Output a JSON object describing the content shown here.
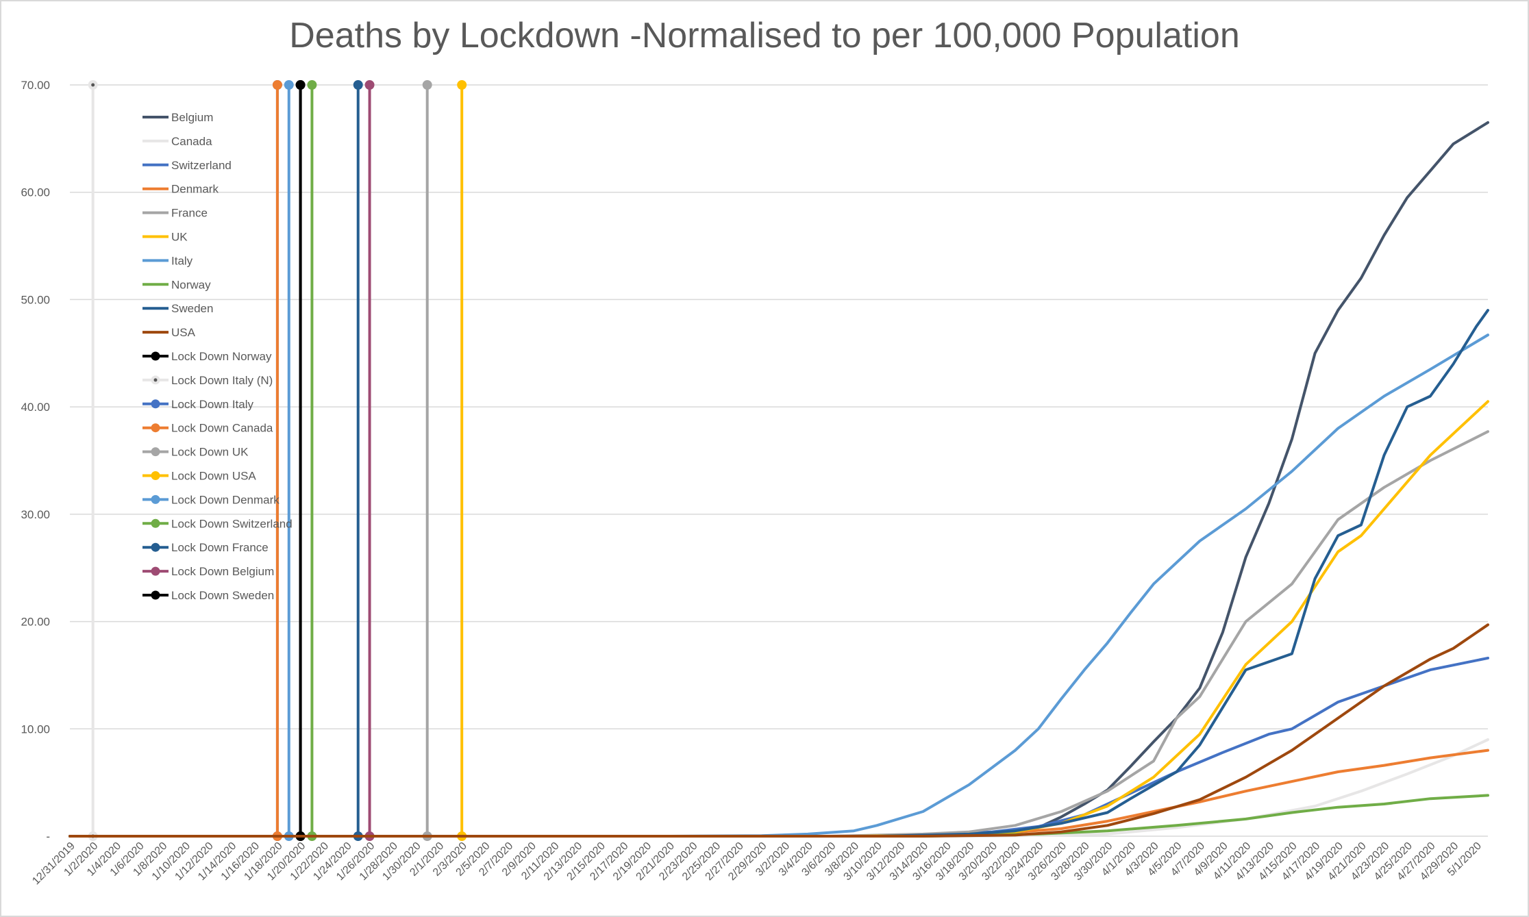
{
  "chart_data": {
    "type": "line",
    "title": "Deaths by Lockdown -Normalised to per 100,000 Population",
    "xlabel": "",
    "ylabel": "",
    "ylim": [
      0,
      70
    ],
    "y_ticks": [
      "-",
      "10.00",
      "20.00",
      "30.00",
      "40.00",
      "50.00",
      "60.00",
      "70.00"
    ],
    "x_start": "12/31/2019",
    "x_end": "5/2/2020",
    "x_tick_labels": [
      "12/31/2019",
      "1/2/2020",
      "1/4/2020",
      "1/6/2020",
      "1/8/2020",
      "1/10/2020",
      "1/12/2020",
      "1/14/2020",
      "1/16/2020",
      "1/18/2020",
      "1/20/2020",
      "1/22/2020",
      "1/24/2020",
      "1/26/2020",
      "1/28/2020",
      "1/30/2020",
      "2/1/2020",
      "2/3/2020",
      "2/5/2020",
      "2/7/2020",
      "2/9/2020",
      "2/11/2020",
      "2/13/2020",
      "2/15/2020",
      "2/17/2020",
      "2/19/2020",
      "2/21/2020",
      "2/23/2020",
      "2/25/2020",
      "2/27/2020",
      "2/29/2020",
      "3/2/2020",
      "3/4/2020",
      "3/6/2020",
      "3/8/2020",
      "3/10/2020",
      "3/12/2020",
      "3/14/2020",
      "3/16/2020",
      "3/18/2020",
      "3/20/2020",
      "3/22/2020",
      "3/24/2020",
      "3/26/2020",
      "3/28/2020",
      "3/30/2020",
      "4/1/2020",
      "4/3/2020",
      "4/5/2020",
      "4/7/2020",
      "4/9/2020",
      "4/11/2020",
      "4/13/2020",
      "4/15/2020",
      "4/17/2020",
      "4/19/2020",
      "4/21/2020",
      "4/23/2020",
      "4/25/2020",
      "4/27/2020",
      "4/29/2020",
      "5/1/2020"
    ],
    "grid": true,
    "legend_position": "top-left",
    "series": [
      {
        "name": "Belgium",
        "color": "#44546a",
        "kind": "line",
        "points": [
          [
            "12/31/2019",
            0
          ],
          [
            "3/10/2020",
            0
          ],
          [
            "3/18/2020",
            0.1
          ],
          [
            "3/22/2020",
            0.4
          ],
          [
            "3/24/2020",
            0.8
          ],
          [
            "3/26/2020",
            1.8
          ],
          [
            "3/28/2020",
            3.0
          ],
          [
            "3/30/2020",
            4.3
          ],
          [
            "4/1/2020",
            6.5
          ],
          [
            "4/3/2020",
            8.8
          ],
          [
            "4/5/2020",
            11.0
          ],
          [
            "4/7/2020",
            13.8
          ],
          [
            "4/9/2020",
            19.0
          ],
          [
            "4/11/2020",
            26.0
          ],
          [
            "4/13/2020",
            31.0
          ],
          [
            "4/15/2020",
            37.0
          ],
          [
            "4/17/2020",
            45.0
          ],
          [
            "4/19/2020",
            49.0
          ],
          [
            "4/21/2020",
            52.0
          ],
          [
            "4/23/2020",
            56.0
          ],
          [
            "4/25/2020",
            59.5
          ],
          [
            "4/27/2020",
            62.0
          ],
          [
            "4/29/2020",
            64.5
          ],
          [
            "5/2/2020",
            66.5
          ]
        ]
      },
      {
        "name": "Canada",
        "color": "#e7e6e6",
        "kind": "line",
        "points": [
          [
            "12/31/2019",
            0
          ],
          [
            "3/20/2020",
            0
          ],
          [
            "3/30/2020",
            0.2
          ],
          [
            "4/5/2020",
            0.8
          ],
          [
            "4/11/2020",
            1.6
          ],
          [
            "4/17/2020",
            2.8
          ],
          [
            "4/21/2020",
            4.2
          ],
          [
            "4/25/2020",
            5.8
          ],
          [
            "4/29/2020",
            7.5
          ],
          [
            "5/2/2020",
            9.0
          ]
        ]
      },
      {
        "name": "Switzerland",
        "color": "#4472c4",
        "kind": "line",
        "points": [
          [
            "12/31/2019",
            0
          ],
          [
            "3/6/2020",
            0
          ],
          [
            "3/14/2020",
            0.1
          ],
          [
            "3/20/2020",
            0.4
          ],
          [
            "3/24/2020",
            0.9
          ],
          [
            "3/28/2020",
            2.0
          ],
          [
            "4/1/2020",
            4.0
          ],
          [
            "4/5/2020",
            6.0
          ],
          [
            "4/9/2020",
            7.8
          ],
          [
            "4/13/2020",
            9.5
          ],
          [
            "4/15/2020",
            10.0
          ],
          [
            "4/19/2020",
            12.5
          ],
          [
            "4/23/2020",
            14.0
          ],
          [
            "4/27/2020",
            15.5
          ],
          [
            "5/2/2020",
            16.6
          ]
        ]
      },
      {
        "name": "Denmark",
        "color": "#ed7d31",
        "kind": "line",
        "points": [
          [
            "12/31/2019",
            0
          ],
          [
            "3/12/2020",
            0
          ],
          [
            "3/20/2020",
            0.2
          ],
          [
            "3/26/2020",
            0.7
          ],
          [
            "3/30/2020",
            1.4
          ],
          [
            "4/3/2020",
            2.3
          ],
          [
            "4/7/2020",
            3.2
          ],
          [
            "4/11/2020",
            4.2
          ],
          [
            "4/15/2020",
            5.1
          ],
          [
            "4/19/2020",
            6.0
          ],
          [
            "4/23/2020",
            6.6
          ],
          [
            "4/27/2020",
            7.3
          ],
          [
            "5/2/2020",
            8.0
          ]
        ]
      },
      {
        "name": "France",
        "color": "#a5a5a5",
        "kind": "line",
        "points": [
          [
            "12/31/2019",
            0
          ],
          [
            "3/6/2020",
            0
          ],
          [
            "3/14/2020",
            0.2
          ],
          [
            "3/18/2020",
            0.4
          ],
          [
            "3/22/2020",
            1.0
          ],
          [
            "3/26/2020",
            2.3
          ],
          [
            "3/30/2020",
            4.2
          ],
          [
            "4/3/2020",
            7.0
          ],
          [
            "4/5/2020",
            11.0
          ],
          [
            "4/7/2020",
            13.0
          ],
          [
            "4/9/2020",
            16.5
          ],
          [
            "4/11/2020",
            20.0
          ],
          [
            "4/15/2020",
            23.5
          ],
          [
            "4/17/2020",
            26.5
          ],
          [
            "4/19/2020",
            29.5
          ],
          [
            "4/23/2020",
            32.5
          ],
          [
            "4/27/2020",
            35.0
          ],
          [
            "5/2/2020",
            37.7
          ]
        ]
      },
      {
        "name": "UK",
        "color": "#ffc000",
        "kind": "line",
        "points": [
          [
            "12/31/2019",
            0
          ],
          [
            "3/8/2020",
            0
          ],
          [
            "3/16/2020",
            0.1
          ],
          [
            "3/22/2020",
            0.4
          ],
          [
            "3/26/2020",
            1.2
          ],
          [
            "3/30/2020",
            2.8
          ],
          [
            "4/3/2020",
            5.5
          ],
          [
            "4/7/2020",
            9.5
          ],
          [
            "4/11/2020",
            16.0
          ],
          [
            "4/15/2020",
            20.0
          ],
          [
            "4/19/2020",
            26.5
          ],
          [
            "4/21/2020",
            28.0
          ],
          [
            "4/25/2020",
            33.0
          ],
          [
            "4/27/2020",
            35.5
          ],
          [
            "4/29/2020",
            37.5
          ],
          [
            "5/2/2020",
            40.5
          ]
        ]
      },
      {
        "name": "Italy",
        "color": "#5b9bd5",
        "kind": "line",
        "points": [
          [
            "12/31/2019",
            0
          ],
          [
            "2/21/2020",
            0
          ],
          [
            "2/29/2020",
            0.05
          ],
          [
            "3/4/2020",
            0.2
          ],
          [
            "3/8/2020",
            0.5
          ],
          [
            "3/10/2020",
            1.0
          ],
          [
            "3/14/2020",
            2.3
          ],
          [
            "3/18/2020",
            4.8
          ],
          [
            "3/22/2020",
            8.0
          ],
          [
            "3/24/2020",
            10.0
          ],
          [
            "3/26/2020",
            12.8
          ],
          [
            "3/28/2020",
            15.5
          ],
          [
            "3/30/2020",
            18.0
          ],
          [
            "4/1/2020",
            20.8
          ],
          [
            "4/3/2020",
            23.5
          ],
          [
            "4/7/2020",
            27.5
          ],
          [
            "4/11/2020",
            30.5
          ],
          [
            "4/15/2020",
            34.0
          ],
          [
            "4/19/2020",
            38.0
          ],
          [
            "4/23/2020",
            41.0
          ],
          [
            "4/27/2020",
            43.5
          ],
          [
            "5/2/2020",
            46.7
          ]
        ]
      },
      {
        "name": "Norway",
        "color": "#70ad47",
        "kind": "line",
        "points": [
          [
            "12/31/2019",
            0
          ],
          [
            "3/14/2020",
            0
          ],
          [
            "3/24/2020",
            0.2
          ],
          [
            "3/30/2020",
            0.5
          ],
          [
            "4/5/2020",
            1.0
          ],
          [
            "4/11/2020",
            1.6
          ],
          [
            "4/15/2020",
            2.2
          ],
          [
            "4/19/2020",
            2.7
          ],
          [
            "4/23/2020",
            3.0
          ],
          [
            "4/27/2020",
            3.5
          ],
          [
            "5/2/2020",
            3.8
          ]
        ]
      },
      {
        "name": "Sweden",
        "color": "#255e91",
        "kind": "line",
        "points": [
          [
            "12/31/2019",
            0
          ],
          [
            "3/10/2020",
            0
          ],
          [
            "3/18/2020",
            0.2
          ],
          [
            "3/22/2020",
            0.5
          ],
          [
            "3/26/2020",
            1.2
          ],
          [
            "3/30/2020",
            2.2
          ],
          [
            "4/1/2020",
            3.5
          ],
          [
            "4/5/2020",
            6.0
          ],
          [
            "4/7/2020",
            8.5
          ],
          [
            "4/11/2020",
            15.5
          ],
          [
            "4/15/2020",
            17.0
          ],
          [
            "4/17/2020",
            24.0
          ],
          [
            "4/19/2020",
            28.0
          ],
          [
            "4/21/2020",
            29.0
          ],
          [
            "4/23/2020",
            35.5
          ],
          [
            "4/25/2020",
            40.0
          ],
          [
            "4/27/2020",
            41.0
          ],
          [
            "4/29/2020",
            44.0
          ],
          [
            "5/1/2020",
            47.5
          ],
          [
            "5/2/2020",
            49.0
          ]
        ]
      },
      {
        "name": "USA",
        "color": "#9e480e",
        "kind": "line",
        "points": [
          [
            "12/31/2019",
            0
          ],
          [
            "3/14/2020",
            0
          ],
          [
            "3/22/2020",
            0.1
          ],
          [
            "3/26/2020",
            0.4
          ],
          [
            "3/30/2020",
            1.0
          ],
          [
            "4/3/2020",
            2.1
          ],
          [
            "4/7/2020",
            3.4
          ],
          [
            "4/11/2020",
            5.5
          ],
          [
            "4/15/2020",
            8.0
          ],
          [
            "4/17/2020",
            9.5
          ],
          [
            "4/19/2020",
            11.0
          ],
          [
            "4/23/2020",
            14.0
          ],
          [
            "4/27/2020",
            16.5
          ],
          [
            "4/29/2020",
            17.5
          ],
          [
            "5/2/2020",
            19.7
          ]
        ]
      },
      {
        "name": "Lock Down Norway",
        "color": "#000000",
        "kind": "lockdown",
        "date": "1/20/2020",
        "y": [
          0,
          70
        ]
      },
      {
        "name": "Lock Down Italy (N)",
        "color": "#e7e6e6",
        "kind": "lockdown",
        "date": "1/2/2020",
        "y": [
          0,
          70
        ]
      },
      {
        "name": "Lock Down Italy",
        "color": "#4472c4",
        "kind": "lockdown",
        "date": "1/18/2020",
        "y": [
          0,
          70
        ]
      },
      {
        "name": "Lock Down Canada",
        "color": "#ed7d31",
        "kind": "lockdown",
        "date": "1/18/2020",
        "y": [
          0,
          70
        ]
      },
      {
        "name": "Lock Down UK",
        "color": "#a5a5a5",
        "kind": "lockdown",
        "date": "1/31/2020",
        "y": [
          0,
          70
        ]
      },
      {
        "name": "Lock Down USA",
        "color": "#ffc000",
        "kind": "lockdown",
        "date": "2/3/2020",
        "y": [
          0,
          70
        ]
      },
      {
        "name": "Lock Down Denmark",
        "color": "#5b9bd5",
        "kind": "lockdown",
        "date": "1/19/2020",
        "y": [
          0,
          70
        ]
      },
      {
        "name": "Lock Down Switzerland",
        "color": "#70ad47",
        "kind": "lockdown",
        "date": "1/21/2020",
        "y": [
          0,
          70
        ]
      },
      {
        "name": "Lock Down France",
        "color": "#255e91",
        "kind": "lockdown",
        "date": "1/25/2020",
        "y": [
          0,
          70
        ]
      },
      {
        "name": "Lock Down Belgium",
        "color": "#9e4b73",
        "kind": "lockdown",
        "date": "1/26/2020",
        "y": [
          0,
          70
        ]
      },
      {
        "name": "Lock Down Sweden",
        "color": "#000000",
        "kind": "lockdown",
        "date": "1/20/2020",
        "y": [
          0,
          70
        ]
      }
    ]
  }
}
